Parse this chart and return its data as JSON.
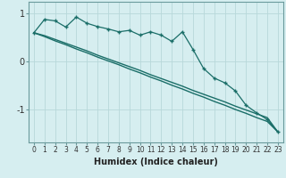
{
  "xlabel": "Humidex (Indice chaleur)",
  "bg_color": "#d6eef0",
  "grid_color": "#b8d8da",
  "line_color": "#1a6e68",
  "x_values": [
    0,
    1,
    2,
    3,
    4,
    5,
    6,
    7,
    8,
    9,
    10,
    11,
    12,
    13,
    14,
    15,
    16,
    17,
    18,
    19,
    20,
    21,
    22,
    23
  ],
  "line1_y": [
    0.6,
    0.88,
    0.85,
    0.72,
    0.93,
    0.8,
    0.73,
    0.68,
    0.62,
    0.65,
    0.55,
    0.62,
    0.55,
    0.42,
    0.62,
    0.25,
    -0.15,
    -0.35,
    -0.45,
    -0.62,
    -0.92,
    -1.08,
    -1.22,
    -1.48
  ],
  "line2_y": [
    0.6,
    0.52,
    0.43,
    0.35,
    0.26,
    0.18,
    0.09,
    0.01,
    -0.07,
    -0.16,
    -0.24,
    -0.33,
    -0.41,
    -0.5,
    -0.58,
    -0.67,
    -0.75,
    -0.84,
    -0.92,
    -1.01,
    -1.09,
    -1.18,
    -1.26,
    -1.48
  ],
  "line3_y": [
    0.6,
    0.54,
    0.46,
    0.38,
    0.3,
    0.22,
    0.13,
    0.05,
    -0.03,
    -0.11,
    -0.19,
    -0.28,
    -0.36,
    -0.44,
    -0.52,
    -0.61,
    -0.69,
    -0.77,
    -0.85,
    -0.94,
    -1.02,
    -1.1,
    -1.18,
    -1.48
  ],
  "ylim": [
    -1.7,
    1.25
  ],
  "yticks": [
    -1,
    0,
    1
  ],
  "xtick_fontsize": 5.5,
  "ytick_fontsize": 7,
  "xlabel_fontsize": 7
}
